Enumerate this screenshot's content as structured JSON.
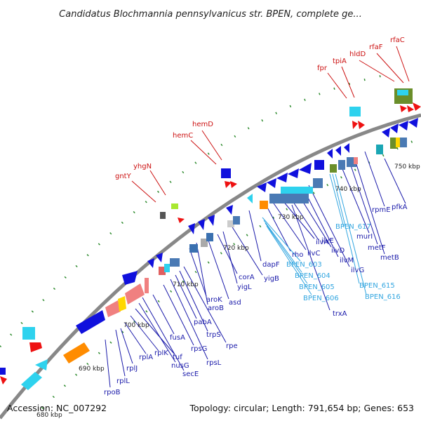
{
  "title": "Candidatus Blochmannia pennsylvanicus str. BPEN, complete ge...",
  "footer": {
    "accession": "Accession: NC_007292",
    "summary": "Topology: circular; Length: 791,654 bp; Genes: 653"
  },
  "ticks": [
    "680 kbp",
    "690 kbp",
    "700 kbp",
    "710 kbp",
    "720 kbp",
    "730 kbp",
    "740 kbp",
    "750 kbp"
  ],
  "labels_outer": [
    "gntY",
    "yhgN",
    "hemC",
    "hemD",
    "fpr",
    "tpiA",
    "hldD",
    "rfaF",
    "rfaC"
  ],
  "labels_inner_blue": [
    "rpoB",
    "rplL",
    "rplJ",
    "rplA",
    "rplK",
    "tuf",
    "nusG",
    "secE",
    "fusA",
    "rpsG",
    "rpsL",
    "pabA",
    "trpS",
    "rpe",
    "aroK",
    "aroB",
    "asd",
    "corA",
    "yigL",
    "yigB",
    "dapF",
    "rho",
    "ilvC",
    "ilvA",
    "ilvE",
    "ilvD",
    "ilvM",
    "ilvG",
    "trxA",
    "murI",
    "metF",
    "metB",
    "rpmE",
    "pfkA"
  ],
  "labels_inner_cyan": [
    "BPEN_603",
    "BPEN_604",
    "BPEN_605",
    "BPEN_606",
    "BPEN_617",
    "BPEN_615",
    "BPEN_616"
  ],
  "colors": {
    "outer_label": "#cc1111",
    "inner_label": "#1a1aaa",
    "pseudo_label": "#33a6e0",
    "backbone": "#888888"
  }
}
